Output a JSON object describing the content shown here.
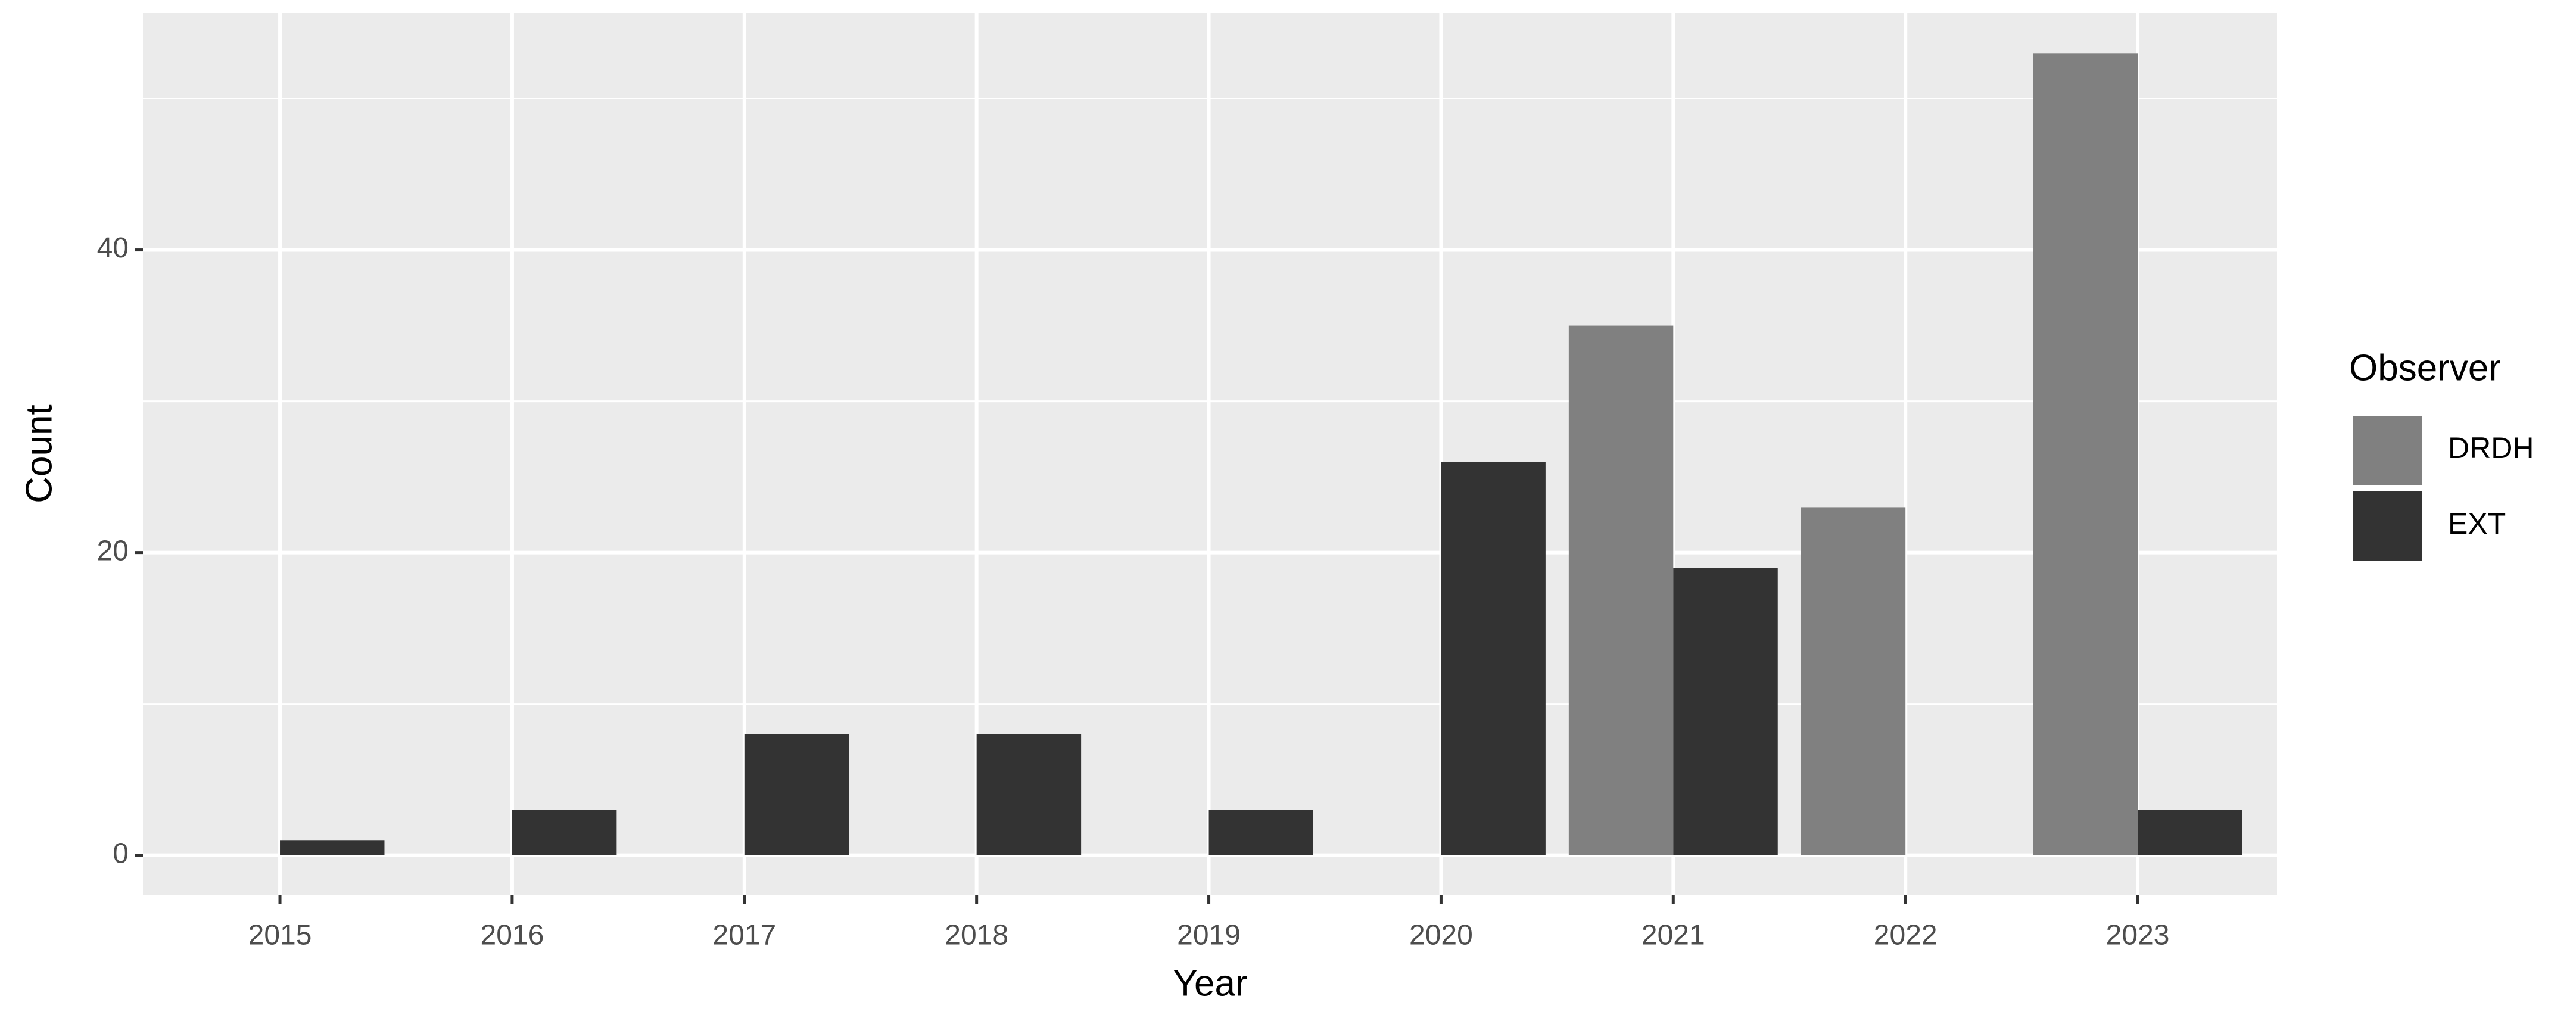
{
  "chart_data": {
    "type": "bar",
    "x_label": "Year",
    "y_label": "Count",
    "x": [
      2015,
      2016,
      2017,
      2018,
      2019,
      2020,
      2021,
      2022,
      2023
    ],
    "xlim": [
      2014.41,
      2023.6
    ],
    "xticks": [
      2015,
      2016,
      2017,
      2018,
      2019,
      2020,
      2021,
      2022,
      2023
    ],
    "ylim": [
      -2.65,
      55.65
    ],
    "yticks": [
      0,
      20,
      40
    ],
    "minor_yticks": [
      10,
      30,
      50
    ],
    "grid": true,
    "legend_title": "Observer",
    "legend": "right",
    "series": [
      {
        "name": "DRDH",
        "color": "#808080",
        "values": [
          null,
          null,
          null,
          null,
          null,
          null,
          35,
          23,
          53
        ]
      },
      {
        "name": "EXT",
        "color": "#333333",
        "values": [
          1,
          3,
          8,
          8,
          3,
          26,
          19,
          null,
          3
        ]
      }
    ]
  }
}
